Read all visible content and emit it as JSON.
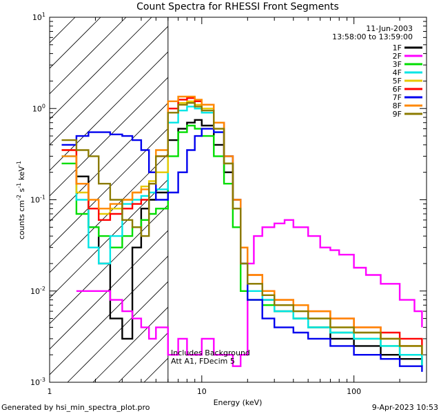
{
  "chart_data": {
    "type": "line",
    "title": "Count Spectra for RHESSI Front Segments",
    "xlabel": "Energy (keV)",
    "ylabel_text": "counts cm",
    "ylabel_sup1": "-2",
    "ylabel_mid": " s",
    "ylabel_sup2": "-1",
    "ylabel_mid2": " keV",
    "ylabel_sup3": "-1",
    "x_scale": "log",
    "y_scale": "log",
    "xlim": [
      1,
      300
    ],
    "ylim": [
      0.001,
      10
    ],
    "x_ticks": [
      {
        "value": 1,
        "label": "1"
      },
      {
        "value": 10,
        "label": "10"
      },
      {
        "value": 100,
        "label": "100"
      }
    ],
    "y_ticks": [
      {
        "value": 0.001,
        "base": "10",
        "exp": "-3"
      },
      {
        "value": 0.01,
        "base": "10",
        "exp": "-2"
      },
      {
        "value": 0.1,
        "base": "10",
        "exp": "-1"
      },
      {
        "value": 1,
        "base": "10",
        "exp": "0"
      },
      {
        "value": 10,
        "base": "10",
        "exp": "1"
      }
    ],
    "date": "11-Jun-2003",
    "time_range": "13:58:00 to 13:59:00",
    "attenuator_energy": 6,
    "annotations": [
      "Includes Background",
      "Att A1, FDecim 5"
    ],
    "footer_left": "Generated by hsi_min_spectra_plot.pro",
    "footer_right": "9-Apr-2023 10:53",
    "series": [
      {
        "name": "1F",
        "color": "#000000",
        "x": [
          1.5,
          1.8,
          2.1,
          2.5,
          3,
          3.5,
          4,
          4.5,
          5,
          6,
          7,
          8,
          9,
          10,
          12,
          14,
          16,
          18,
          20,
          25,
          30,
          40,
          50,
          70,
          100,
          150,
          200,
          280
        ],
        "y": [
          0.18,
          0.05,
          0.02,
          0.005,
          0.003,
          0.03,
          0.08,
          0.1,
          0.12,
          0.45,
          0.6,
          0.7,
          0.75,
          0.65,
          0.4,
          0.2,
          0.08,
          0.03,
          0.012,
          0.008,
          0.006,
          0.005,
          0.004,
          0.003,
          0.0025,
          0.002,
          0.0018,
          0.0015
        ]
      },
      {
        "name": "2F",
        "color": "#ff00ff",
        "x": [
          1.5,
          2,
          2.5,
          3,
          3.5,
          4,
          4.5,
          5,
          6,
          7,
          8,
          9,
          10,
          12,
          14,
          16,
          18,
          20,
          22,
          25,
          30,
          35,
          40,
          50,
          60,
          70,
          80,
          100,
          120,
          150,
          200,
          250,
          280
        ],
        "y": [
          0.01,
          0.01,
          0.008,
          0.006,
          0.005,
          0.004,
          0.003,
          0.004,
          0.002,
          0.003,
          0.002,
          0.002,
          0.003,
          0.002,
          0.002,
          0.0015,
          0.002,
          0.02,
          0.04,
          0.05,
          0.055,
          0.06,
          0.05,
          0.04,
          0.03,
          0.028,
          0.025,
          0.018,
          0.015,
          0.012,
          0.008,
          0.006,
          0.004
        ]
      },
      {
        "name": "3F",
        "color": "#00dd00",
        "x": [
          1.2,
          1.5,
          1.8,
          2.1,
          2.5,
          3,
          3.5,
          4,
          4.5,
          5,
          6,
          7,
          8,
          9,
          10,
          12,
          14,
          16,
          18,
          20,
          25,
          30,
          40,
          50,
          70,
          100,
          150,
          200,
          280
        ],
        "y": [
          0.25,
          0.07,
          0.05,
          0.04,
          0.03,
          0.04,
          0.05,
          0.06,
          0.07,
          0.08,
          0.3,
          0.55,
          0.65,
          0.6,
          0.5,
          0.3,
          0.15,
          0.05,
          0.01,
          0.008,
          0.007,
          0.006,
          0.005,
          0.004,
          0.0035,
          0.003,
          0.0025,
          0.002,
          0.0015
        ]
      },
      {
        "name": "4F",
        "color": "#00e5e5",
        "x": [
          1.2,
          1.5,
          1.8,
          2.1,
          2.5,
          3,
          3.5,
          4,
          4.5,
          5,
          6,
          7,
          8,
          9,
          10,
          12,
          14,
          16,
          18,
          20,
          25,
          30,
          40,
          50,
          70,
          100,
          150,
          200,
          280
        ],
        "y": [
          0.3,
          0.1,
          0.03,
          0.02,
          0.04,
          0.09,
          0.1,
          0.11,
          0.12,
          0.13,
          0.7,
          0.95,
          1.05,
          1.0,
          0.9,
          0.55,
          0.25,
          0.08,
          0.02,
          0.01,
          0.008,
          0.006,
          0.005,
          0.004,
          0.0035,
          0.003,
          0.0025,
          0.002,
          0.0015
        ]
      },
      {
        "name": "5F",
        "color": "#e6c800",
        "x": [
          1.2,
          1.5,
          1.8,
          2.1,
          2.5,
          3,
          3.5,
          4,
          4.5,
          5,
          6,
          7,
          8,
          9,
          10,
          12,
          14,
          16,
          18,
          20,
          25,
          30,
          40,
          50,
          70,
          100,
          150,
          200,
          280
        ],
        "y": [
          0.35,
          0.12,
          0.08,
          0.07,
          0.08,
          0.1,
          0.12,
          0.14,
          0.16,
          0.2,
          0.9,
          1.15,
          1.2,
          1.1,
          1.0,
          0.6,
          0.25,
          0.08,
          0.02,
          0.012,
          0.009,
          0.007,
          0.006,
          0.005,
          0.004,
          0.0035,
          0.003,
          0.0025,
          0.002
        ]
      },
      {
        "name": "6F",
        "color": "#ff0000",
        "x": [
          1.2,
          1.5,
          1.8,
          2.1,
          2.5,
          3,
          3.5,
          4,
          4.5,
          5,
          6,
          7,
          8,
          9,
          10,
          12,
          14,
          16,
          18,
          20,
          25,
          30,
          40,
          50,
          70,
          100,
          150,
          200,
          280
        ],
        "y": [
          0.35,
          0.15,
          0.08,
          0.06,
          0.07,
          0.08,
          0.09,
          0.1,
          0.15,
          0.3,
          1.0,
          1.25,
          1.3,
          1.2,
          1.1,
          0.7,
          0.3,
          0.1,
          0.03,
          0.015,
          0.01,
          0.008,
          0.007,
          0.006,
          0.005,
          0.004,
          0.0035,
          0.003,
          0.0025
        ]
      },
      {
        "name": "7F",
        "color": "#0000ee",
        "x": [
          1.2,
          1.5,
          1.8,
          2.1,
          2.5,
          3,
          3.5,
          4,
          4.5,
          5,
          6,
          7,
          8,
          9,
          10,
          12,
          14,
          16,
          18,
          20,
          25,
          30,
          40,
          50,
          70,
          100,
          150,
          200,
          280
        ],
        "y": [
          0.4,
          0.5,
          0.55,
          0.55,
          0.52,
          0.5,
          0.45,
          0.35,
          0.2,
          0.1,
          0.12,
          0.2,
          0.35,
          0.5,
          0.6,
          0.55,
          0.3,
          0.1,
          0.02,
          0.008,
          0.005,
          0.004,
          0.0035,
          0.003,
          0.0025,
          0.002,
          0.0018,
          0.0015,
          0.0013
        ]
      },
      {
        "name": "8F",
        "color": "#ff8800",
        "x": [
          1.2,
          1.5,
          1.8,
          2.1,
          2.5,
          3,
          3.5,
          4,
          4.5,
          5,
          6,
          7,
          8,
          9,
          10,
          12,
          14,
          16,
          18,
          20,
          25,
          30,
          40,
          50,
          70,
          100,
          150,
          200,
          280
        ],
        "y": [
          0.3,
          0.15,
          0.1,
          0.08,
          0.09,
          0.1,
          0.12,
          0.13,
          0.15,
          0.35,
          1.2,
          1.35,
          1.35,
          1.25,
          1.1,
          0.7,
          0.3,
          0.1,
          0.03,
          0.015,
          0.01,
          0.008,
          0.007,
          0.006,
          0.005,
          0.004,
          0.003,
          0.0025,
          0.002
        ]
      },
      {
        "name": "9F",
        "color": "#8b7b00",
        "x": [
          1.2,
          1.5,
          1.8,
          2.1,
          2.5,
          3,
          3.5,
          4,
          4.5,
          5,
          6,
          7,
          8,
          9,
          10,
          12,
          14,
          16,
          18,
          20,
          25,
          30,
          40,
          50,
          70,
          100,
          150,
          200,
          280
        ],
        "y": [
          0.45,
          0.35,
          0.3,
          0.15,
          0.1,
          0.06,
          0.05,
          0.04,
          0.15,
          0.3,
          0.9,
          1.1,
          1.15,
          1.05,
          0.95,
          0.6,
          0.25,
          0.08,
          0.02,
          0.012,
          0.009,
          0.007,
          0.006,
          0.005,
          0.004,
          0.0035,
          0.003,
          0.0025,
          0.002
        ]
      }
    ]
  }
}
